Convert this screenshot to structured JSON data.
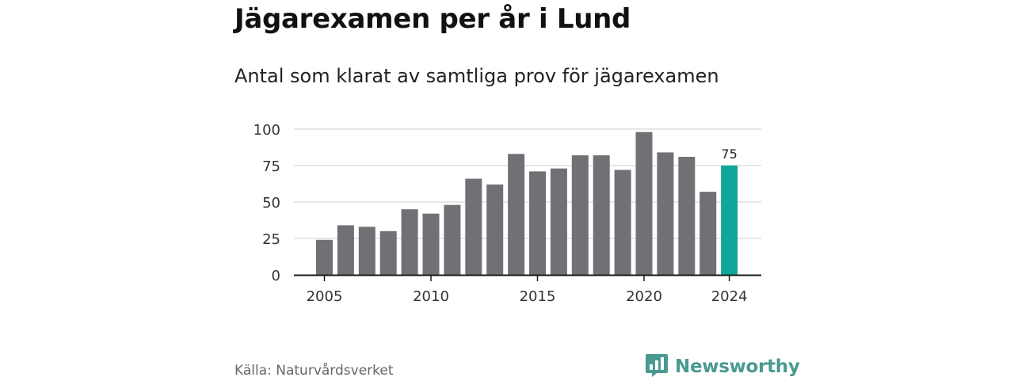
{
  "title": "Jägarexamen per år i Lund",
  "subtitle": "Antal som klarat av samtliga prov för jägarexamen",
  "source": "Källa: Naturvårdsverket",
  "brand": {
    "name": "Newsworthy",
    "logo_icon": "bar-chart-speech-bubble-icon",
    "color": "#4a9a90"
  },
  "colors": {
    "bar": "#717075",
    "highlight": "#0ea79a",
    "grid": "#d6d6d6",
    "axis": "#1a1a1a"
  },
  "chart_data": {
    "type": "bar",
    "x": [
      2005,
      2006,
      2007,
      2008,
      2009,
      2010,
      2011,
      2012,
      2013,
      2014,
      2015,
      2016,
      2017,
      2018,
      2019,
      2020,
      2021,
      2022,
      2023,
      2024
    ],
    "values": [
      24,
      34,
      33,
      30,
      45,
      42,
      48,
      66,
      62,
      83,
      71,
      73,
      82,
      82,
      72,
      98,
      84,
      81,
      57,
      75
    ],
    "highlight_index": 19,
    "data_labels": [
      {
        "index": 19,
        "text": "75"
      }
    ],
    "xticks": [
      "2005",
      "2010",
      "2015",
      "2020",
      "2024"
    ],
    "yticks": [
      "0",
      "25",
      "50",
      "75",
      "100"
    ],
    "ylim": [
      0,
      100
    ],
    "grid": true
  }
}
